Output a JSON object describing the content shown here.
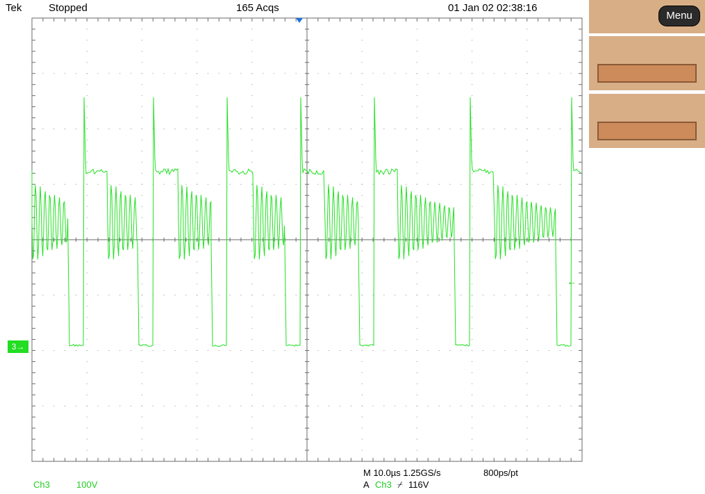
{
  "status_bar": {
    "brand": "Tek",
    "state": "Stopped",
    "acquisitions": "165 Acqs",
    "datetime": "01 Jan 02 02:38:16"
  },
  "menu": {
    "menu_label": "Menu"
  },
  "channel": {
    "marker": "3→",
    "trigger_level_arrow": "←",
    "name": "Ch3",
    "scale": "100V"
  },
  "timebase": {
    "horizontal": "M 10.0µs 1.25GS/s",
    "record": "800ps/pt",
    "trigger_prefix": "A",
    "trigger_source": "Ch3",
    "trigger_slope": "⌿",
    "trigger_level": "116V"
  },
  "colors": {
    "trace": "#22e022",
    "panel": "#d8ae87",
    "panel_button": "#cd8a5a",
    "trigger_marker": "#1e73d8"
  }
}
